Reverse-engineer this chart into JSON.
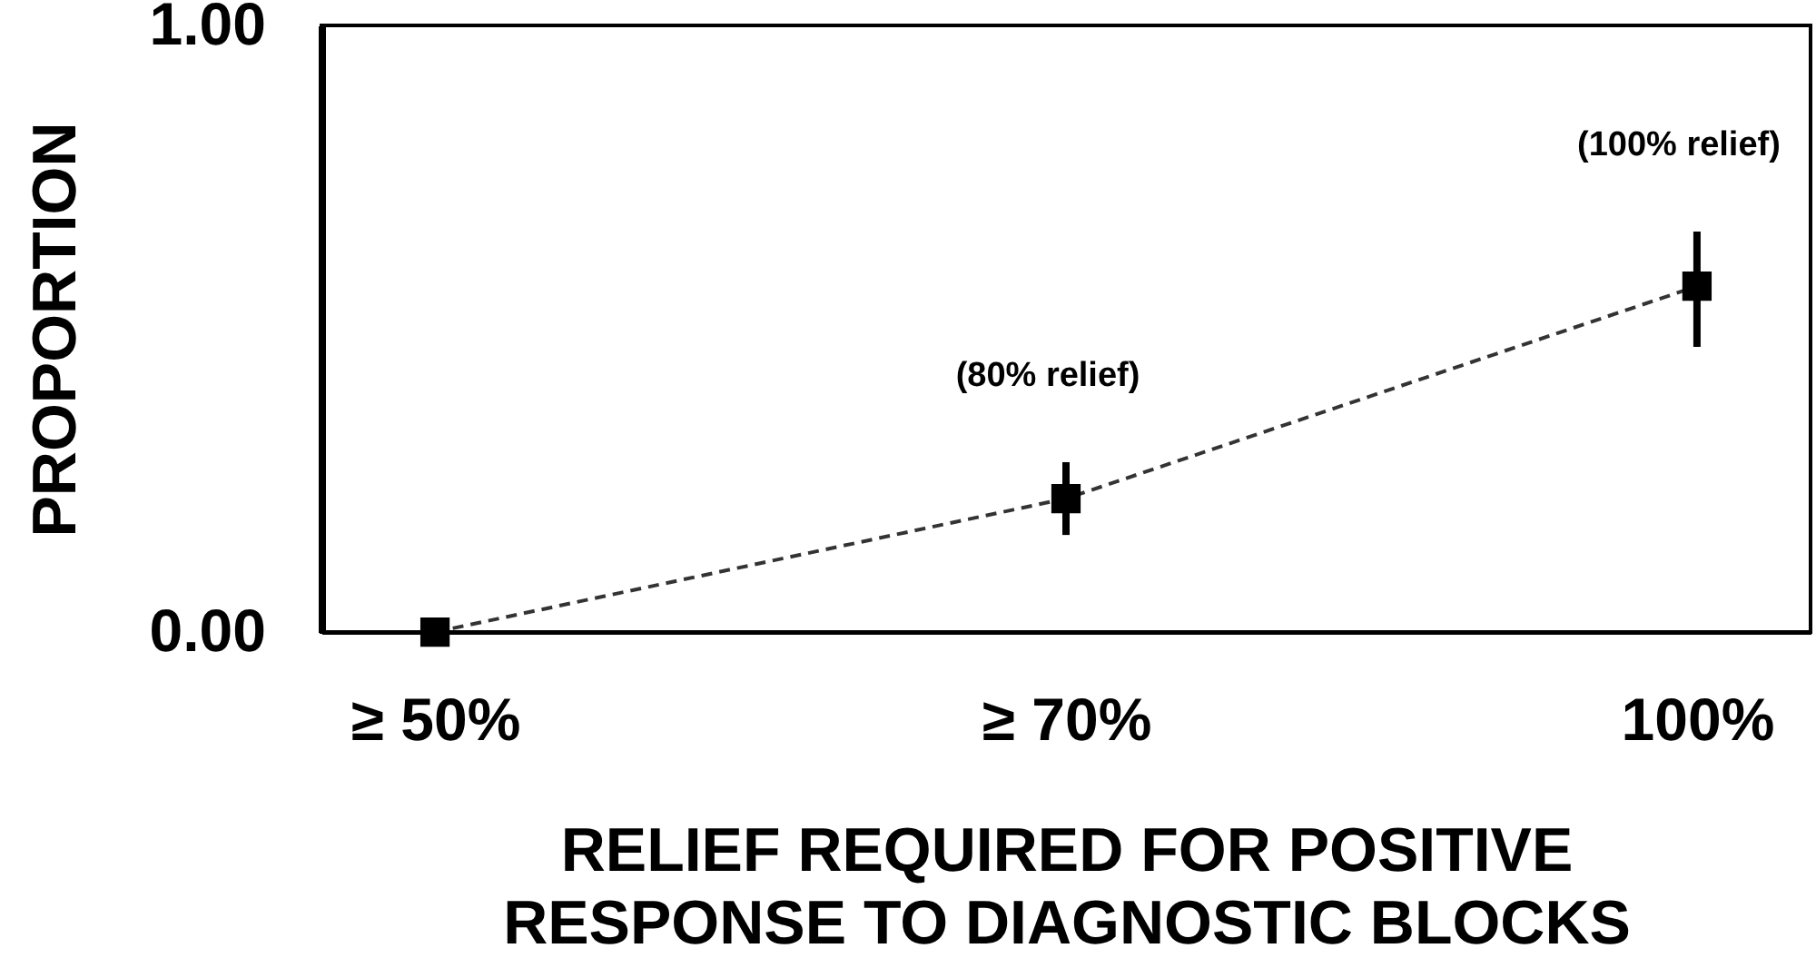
{
  "chart_data": {
    "type": "line",
    "xlabel": "RELIEF REQUIRED FOR POSITIVE\nRESPONSE TO DIAGNOSTIC BLOCKS",
    "ylabel": "PROPORTION",
    "categories": [
      "≥ 50%",
      "≥ 70%",
      "100%"
    ],
    "series": [
      {
        "color": "#000000",
        "values": [
          0,
          0.22,
          0.57
        ],
        "errors": [
          null,
          [
            0.16,
            0.28
          ],
          [
            0.47,
            0.66
          ]
        ]
      }
    ],
    "ylim": [
      0,
      1
    ],
    "yticks": [
      {
        "value": 0,
        "label": "0.00"
      },
      {
        "value": 1,
        "label": "1.00"
      }
    ],
    "marker": "square",
    "line_style": "dashed",
    "grid": false,
    "annotations": [
      "(80% relief)",
      "(100% relief)"
    ]
  }
}
